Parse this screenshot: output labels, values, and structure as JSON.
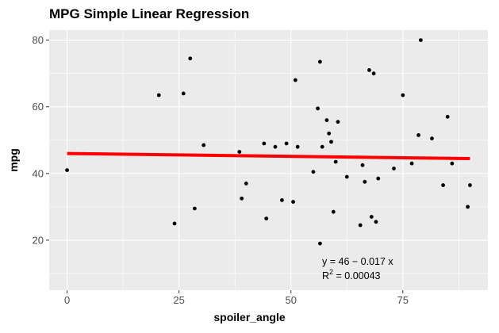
{
  "title": "MPG Simple Linear Regression",
  "chart_data": {
    "type": "scatter",
    "title": "MPG Simple Linear Regression",
    "xlabel": "spoiler_angle",
    "ylabel": "mpg",
    "xlim": [
      -4,
      94
    ],
    "ylim": [
      5,
      83
    ],
    "x_ticks": [
      0,
      25,
      50,
      75
    ],
    "y_ticks": [
      20,
      40,
      60,
      80
    ],
    "grid": true,
    "background": "#ebebeb",
    "point_color": "#000000",
    "line_color": "#ff0000",
    "series": [
      {
        "values": [
          {
            "x": 0,
            "y": 41
          },
          {
            "x": 20.5,
            "y": 63.5
          },
          {
            "x": 24,
            "y": 25
          },
          {
            "x": 26,
            "y": 64
          },
          {
            "x": 27.5,
            "y": 74.5
          },
          {
            "x": 28.5,
            "y": 29.5
          },
          {
            "x": 30.5,
            "y": 48.5
          },
          {
            "x": 38.5,
            "y": 46.5
          },
          {
            "x": 39,
            "y": 32.5
          },
          {
            "x": 40,
            "y": 37
          },
          {
            "x": 44,
            "y": 49
          },
          {
            "x": 44.5,
            "y": 26.5
          },
          {
            "x": 46.5,
            "y": 48
          },
          {
            "x": 48,
            "y": 32
          },
          {
            "x": 49,
            "y": 49
          },
          {
            "x": 50.5,
            "y": 31.5
          },
          {
            "x": 51,
            "y": 68
          },
          {
            "x": 51.5,
            "y": 48
          },
          {
            "x": 55,
            "y": 40.5
          },
          {
            "x": 56,
            "y": 59.5
          },
          {
            "x": 56.5,
            "y": 73.5
          },
          {
            "x": 56.5,
            "y": 19
          },
          {
            "x": 57,
            "y": 48
          },
          {
            "x": 58,
            "y": 56
          },
          {
            "x": 58.5,
            "y": 52
          },
          {
            "x": 59,
            "y": 49.5
          },
          {
            "x": 59.5,
            "y": 28.5
          },
          {
            "x": 60,
            "y": 43.5
          },
          {
            "x": 60.5,
            "y": 55.5
          },
          {
            "x": 62.5,
            "y": 39
          },
          {
            "x": 65.5,
            "y": 24.5
          },
          {
            "x": 66,
            "y": 42.5
          },
          {
            "x": 66.5,
            "y": 37.5
          },
          {
            "x": 67.5,
            "y": 71
          },
          {
            "x": 68,
            "y": 27
          },
          {
            "x": 68.5,
            "y": 70
          },
          {
            "x": 69,
            "y": 25.5
          },
          {
            "x": 69.5,
            "y": 38.5
          },
          {
            "x": 73,
            "y": 41.5
          },
          {
            "x": 75,
            "y": 63.5
          },
          {
            "x": 77,
            "y": 43
          },
          {
            "x": 78.5,
            "y": 51.5
          },
          {
            "x": 79,
            "y": 80
          },
          {
            "x": 81.5,
            "y": 50.5
          },
          {
            "x": 84,
            "y": 36.5
          },
          {
            "x": 85,
            "y": 57
          },
          {
            "x": 86,
            "y": 43
          },
          {
            "x": 89.5,
            "y": 30
          },
          {
            "x": 90,
            "y": 36.5
          }
        ]
      }
    ],
    "regression": {
      "intercept": 46,
      "slope": -0.017,
      "x_range": [
        0,
        90
      ],
      "equation": "y = 46 − 0.017 x",
      "r2_label": "R",
      "r2_value": " = 0.00043"
    }
  }
}
